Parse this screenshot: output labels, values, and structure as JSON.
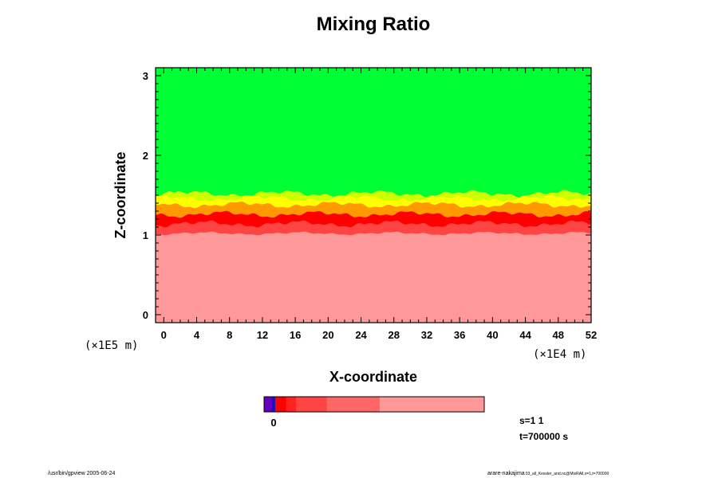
{
  "chart_data": {
    "type": "heatmap",
    "title": "Mixing Ratio",
    "xlabel": "X-coordinate",
    "ylabel": "Z-coordinate",
    "x_scale_label": "(×1E4 m)",
    "y_scale_label": "(×1E5 m)",
    "xlim": [
      -1,
      52
    ],
    "ylim": [
      -0.1,
      3.1
    ],
    "x_ticks": [
      0,
      4,
      8,
      12,
      16,
      20,
      24,
      28,
      32,
      36,
      40,
      44,
      48,
      52
    ],
    "y_ticks": [
      0,
      1,
      2,
      3
    ],
    "layers": [
      {
        "name": "upper",
        "color": "#00ff33",
        "z_min": 1.55,
        "z_max": 3.1
      },
      {
        "name": "transition-light-yellow",
        "color": "#ccff00",
        "z_center": 1.52
      },
      {
        "name": "transition-yellow",
        "color": "#ffff00",
        "z_center": 1.46
      },
      {
        "name": "transition-orange",
        "color": "#ff9900",
        "z_center": 1.38
      },
      {
        "name": "transition-red",
        "color": "#ff0000",
        "z_center": 1.26
      },
      {
        "name": "transition-light-red",
        "color": "#ff4444",
        "z_center": 1.14
      },
      {
        "name": "lower",
        "color": "#ff9999",
        "z_min": -0.1,
        "z_max": 1.02
      }
    ],
    "colorbar": {
      "label": "0",
      "colors": [
        "#6600bb",
        "#1111cc",
        "#ff0000",
        "#ff2222",
        "#ff4444",
        "#ff6666",
        "#ff9999"
      ],
      "fractions": [
        0.035,
        0.015,
        0.05,
        0.045,
        0.14,
        0.24,
        0.475
      ]
    }
  },
  "info": {
    "s_label": "s=1 1",
    "t_label": "t=700000 s"
  },
  "footer": {
    "left": "/usr/bin/gpview 2005-06-24",
    "right_main": "arare-nakajima",
    "right_small": "03_all_Kessler_and.nc@MixRAll,x=1,t=700000"
  }
}
